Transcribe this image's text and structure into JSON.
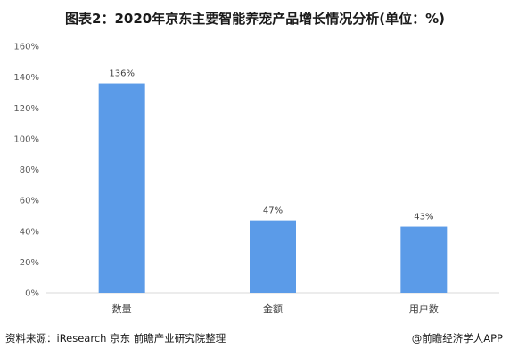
{
  "chart_data": {
    "type": "bar",
    "title": "图表2：2020年京东主要智能养宠产品增长情况分析(单位：%)",
    "categories": [
      "数量",
      "金额",
      "用户数"
    ],
    "values": [
      136,
      47,
      43
    ],
    "data_labels": [
      "136%",
      "47%",
      "43%"
    ],
    "ylim": [
      0,
      160
    ],
    "yticks": [
      0,
      20,
      40,
      60,
      80,
      100,
      120,
      140,
      160
    ],
    "ytick_labels": [
      "0%",
      "20%",
      "40%",
      "60%",
      "80%",
      "100%",
      "120%",
      "140%",
      "160%"
    ],
    "xlabel": "",
    "ylabel": "",
    "grid": false,
    "bar_color": "#5B9BE8"
  },
  "footer": {
    "source": "资料来源：iResearch 京东 前瞻产业研究院整理",
    "brand": "@前瞻经济学人APP"
  }
}
